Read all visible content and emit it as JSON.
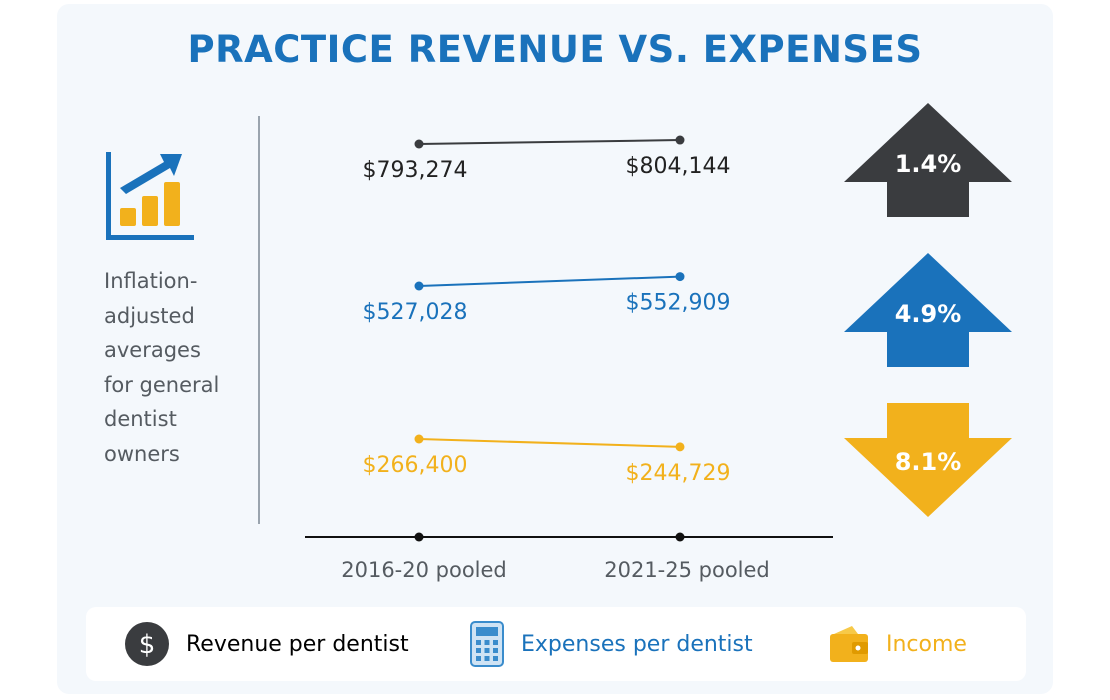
{
  "page": {
    "title": "PRACTICE REVENUE VS. EXPENSES",
    "description_lines": [
      "Inflation-",
      "adjusted",
      "averages",
      "for general",
      "dentist",
      "owners"
    ]
  },
  "colors": {
    "title": "#1a72bb",
    "revenue": "#3a3c3f",
    "expenses": "#1a72bb",
    "income": "#f2b11c",
    "axis": "#111111"
  },
  "icons": {
    "trend": "bar-chart-trend-icon",
    "revenue": "dollar-coin-icon",
    "expenses": "calculator-icon",
    "income": "wallet-icon"
  },
  "chart_data": {
    "type": "line",
    "title": "PRACTICE REVENUE VS. EXPENSES",
    "categories": [
      "2016-20 pooled",
      "2021-25 pooled"
    ],
    "series": [
      {
        "name": "Revenue per dentist",
        "values": [
          793274,
          804144
        ],
        "labels": [
          "$793,274",
          "$804,144"
        ],
        "change": "1.4%",
        "direction": "up",
        "color": "#3a3c3f"
      },
      {
        "name": "Expenses per dentist",
        "values": [
          527028,
          552909
        ],
        "labels": [
          "$527,028",
          "$552,909"
        ],
        "change": "4.9%",
        "direction": "up",
        "color": "#1a72bb"
      },
      {
        "name": "Income",
        "values": [
          266400,
          244729
        ],
        "labels": [
          "$266,400",
          "$244,729"
        ],
        "change": "8.1%",
        "direction": "down",
        "color": "#f2b11c"
      }
    ],
    "legend_position": "bottom",
    "grid": false
  },
  "legend": [
    {
      "label": "Revenue per dentist",
      "color": "#222222"
    },
    {
      "label": "Expenses per dentist",
      "color": "#1a72bb"
    },
    {
      "label": "Income",
      "color": "#f2b11c"
    }
  ]
}
